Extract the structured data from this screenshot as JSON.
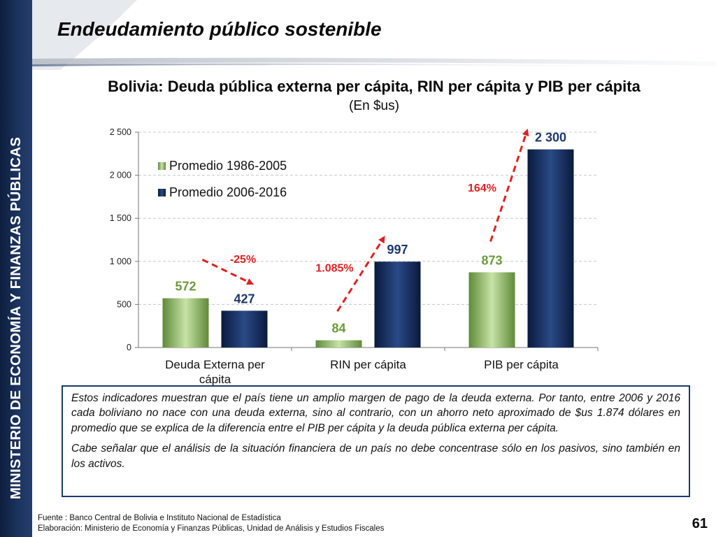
{
  "sidebar": {
    "text": "MINISTERIO DE ECONOMÍA Y FINANZAS PÚBLICAS"
  },
  "slide": {
    "title": "Endeudamiento público sostenible",
    "page_number": "61"
  },
  "chart_data": {
    "type": "bar",
    "title": "Bolivia: Deuda pública externa per cápita, RIN per cápita y PIB per cápita",
    "subtitle": "(En $us)",
    "categories": [
      "Deuda Externa per cápita",
      "RIN per cápita",
      "PIB per cápita"
    ],
    "series": [
      {
        "name": "Promedio 1986-2005",
        "values": [
          572,
          84,
          873
        ],
        "color": "#8fbc6a",
        "label_color": "#6c9a3c"
      },
      {
        "name": "Promedio 2006-2016",
        "values": [
          427,
          997,
          2300
        ],
        "color": "#10295a",
        "label_color": "#1c3a6e"
      }
    ],
    "value_labels": [
      [
        "572",
        "84",
        "873"
      ],
      [
        "427",
        "997",
        "2 300"
      ]
    ],
    "ylim": [
      0,
      2500
    ],
    "yticks": [
      0,
      500,
      1000,
      1500,
      2000,
      2500
    ],
    "ytick_labels": [
      "0",
      "500",
      "1 000",
      "1 500",
      "2 000",
      "2 500"
    ],
    "grid": true,
    "legend_position": "top-left",
    "annotations": [
      {
        "text": "-25%",
        "category": 0
      },
      {
        "text": "1.085%",
        "category": 1
      },
      {
        "text": "164%",
        "category": 2
      }
    ],
    "annotation_color": "#e02020"
  },
  "note": {
    "paragraphs": [
      "Estos indicadores muestran que el país tiene un amplio margen de pago de la deuda externa. Por tanto, entre 2006 y 2016 cada boliviano no nace con una deuda externa, sino al contrario, con un ahorro neto aproximado de $us 1.874 dólares en promedio que se explica de la diferencia entre el PIB per cápita y la deuda pública externa per cápita.",
      "Cabe señalar que el análisis de la situación financiera de un país no debe concentrase sólo en los pasivos, sino también en los activos."
    ]
  },
  "footer": {
    "source": "Fuente : Banco Central de Bolivia e Instituto Nacional de Estadística",
    "elaboration": "Elaboración: Ministerio de Economía y Finanzas Públicas, Unidad de Análisis y Estudios Fiscales"
  }
}
